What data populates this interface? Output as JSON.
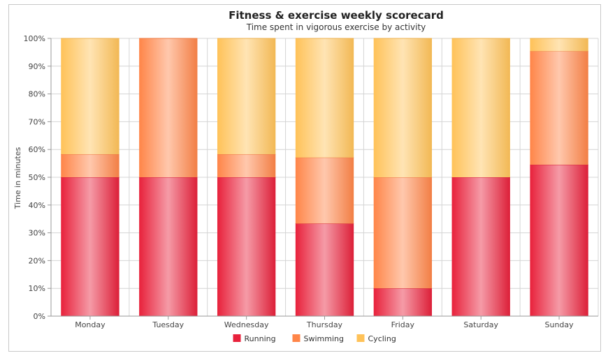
{
  "chart_data": {
    "type": "bar",
    "stacked": true,
    "normalized": true,
    "title": "Fitness & exercise weekly scorecard",
    "subtitle": "Time spent in vigorous exercise by activity",
    "ylabel": "Time in minutes",
    "ylim": [
      0,
      100
    ],
    "y_ticks": [
      "0%",
      "10%",
      "20%",
      "30%",
      "40%",
      "50%",
      "60%",
      "70%",
      "80%",
      "90%",
      "100%"
    ],
    "categories": [
      "Monday",
      "Tuesday",
      "Wednesday",
      "Thursday",
      "Friday",
      "Saturday",
      "Sunday"
    ],
    "series": [
      {
        "name": "Running",
        "color": "#e8213b",
        "values": [
          50,
          50,
          50,
          33.3,
          10,
          50,
          54.5
        ]
      },
      {
        "name": "Swimming",
        "color": "#ff8548",
        "values": [
          8.3,
          50,
          8.3,
          23.8,
          40,
          0,
          40.9
        ]
      },
      {
        "name": "Cycling",
        "color": "#ffc258",
        "values": [
          41.7,
          0,
          41.7,
          42.9,
          50,
          50,
          4.6
        ]
      }
    ],
    "grid": true,
    "legend": "bottom"
  }
}
